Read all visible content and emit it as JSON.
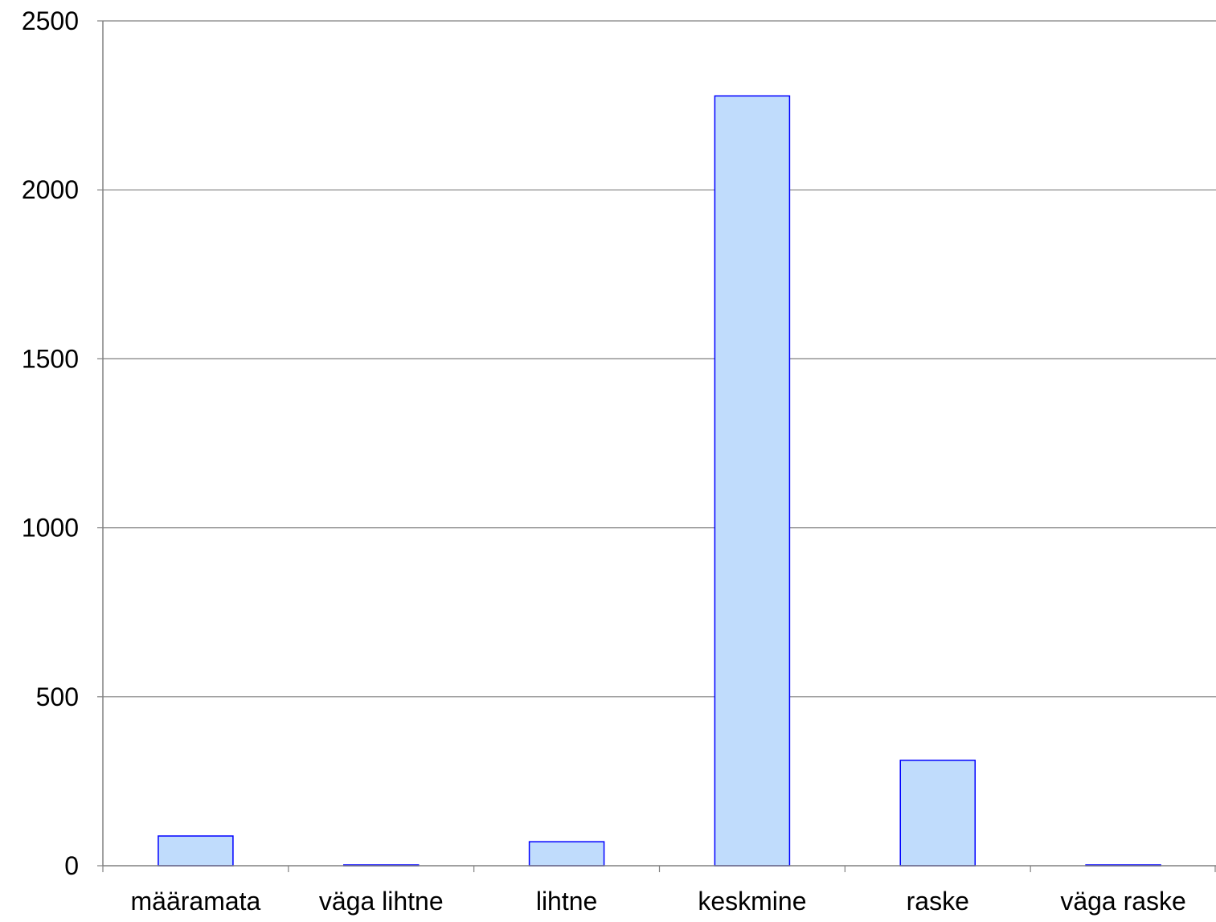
{
  "chart_data": {
    "type": "bar",
    "title": "",
    "xlabel": "",
    "ylabel": "",
    "categories": [
      "määramata",
      "väga lihtne",
      "lihtne",
      "keskmine",
      "raske",
      "väga raske"
    ],
    "series": [
      {
        "values": [
          88,
          1,
          71,
          2278,
          312,
          2
        ]
      }
    ],
    "ylim": [
      0,
      2500
    ],
    "yticks": [
      "0",
      "500",
      "1000",
      "1500",
      "2000",
      "2500"
    ],
    "grid": true,
    "legend": "none",
    "colors": {
      "bar_fill": "#c0dcfc",
      "bar_stroke": "#0000ff",
      "grid": "#808080",
      "axis": "#808080"
    }
  }
}
